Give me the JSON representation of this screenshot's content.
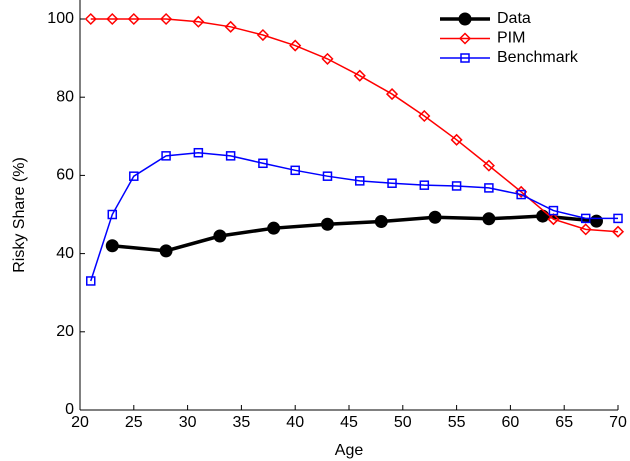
{
  "chart_data": {
    "type": "line",
    "x_label": "Age",
    "y_label": "Risky Share (%)",
    "xlim": [
      20,
      70
    ],
    "xticks": [
      20,
      25,
      30,
      35,
      40,
      45,
      50,
      55,
      60,
      65,
      70
    ],
    "ylim": [
      0,
      100
    ],
    "yticks": [
      0,
      20,
      40,
      60,
      80,
      100
    ],
    "legend": "upper right",
    "series": [
      {
        "name": "Data",
        "color": "#000000",
        "marker": "circle",
        "x": [
          23,
          28,
          33,
          38,
          43,
          48,
          53,
          58,
          63,
          68
        ],
        "values": [
          42,
          40.7,
          44.5,
          46.5,
          47.5,
          48.2,
          49.3,
          48.9,
          49.6,
          48.3
        ]
      },
      {
        "name": "PIM",
        "color": "#ff0000",
        "marker": "diamond",
        "x": [
          21,
          23,
          25,
          28,
          31,
          34,
          37,
          40,
          43,
          46,
          49,
          52,
          55,
          58,
          61,
          64,
          67,
          70
        ],
        "values": [
          100,
          100,
          100,
          100,
          99.3,
          98,
          95.9,
          93.2,
          89.8,
          85.5,
          80.8,
          75.2,
          69.1,
          62.5,
          55.8,
          48.8,
          46.2,
          45.6
        ]
      },
      {
        "name": "Benchmark",
        "color": "#0000ff",
        "marker": "square",
        "x": [
          21,
          23,
          25,
          28,
          31,
          34,
          37,
          40,
          43,
          46,
          49,
          52,
          55,
          58,
          61,
          64,
          67,
          70
        ],
        "values": [
          33,
          50,
          59.8,
          65,
          65.8,
          65,
          63.1,
          61.3,
          59.8,
          58.6,
          58,
          57.5,
          57.3,
          56.8,
          55.1,
          51,
          49,
          49
        ]
      }
    ]
  }
}
